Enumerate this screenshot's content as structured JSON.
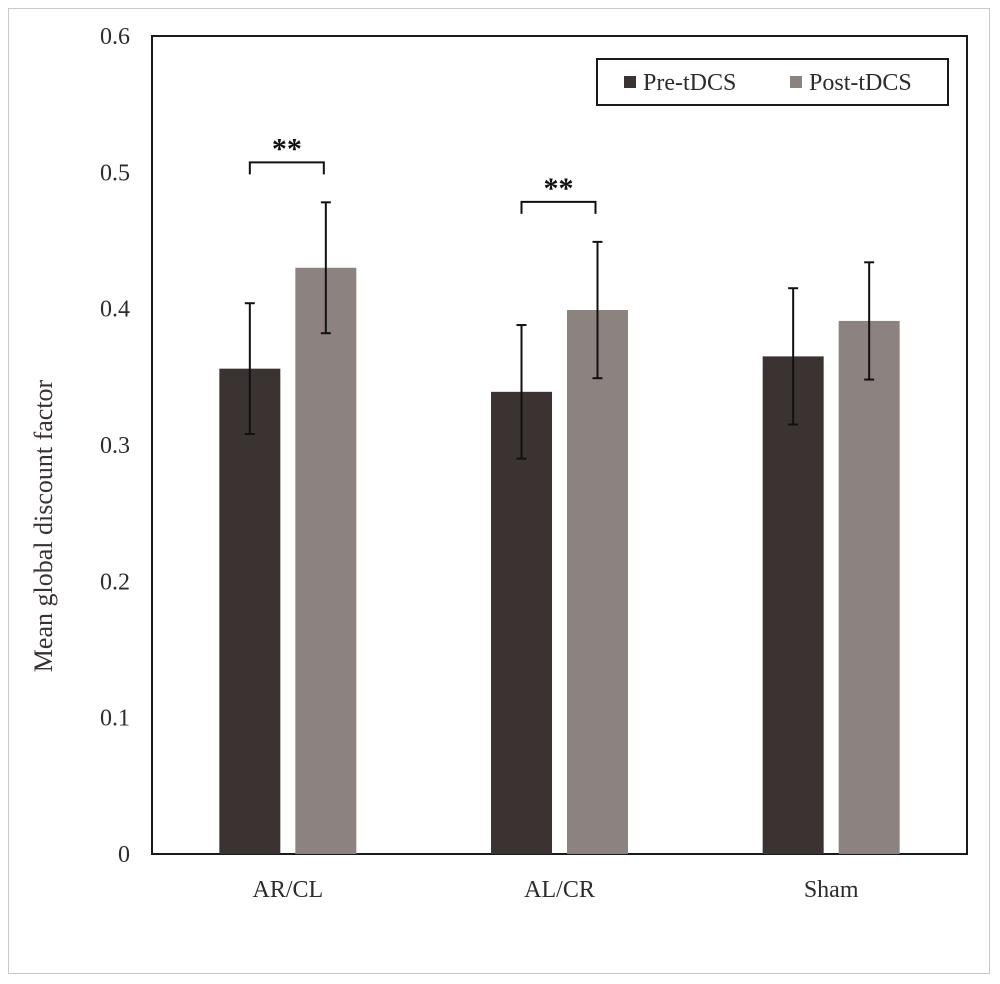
{
  "chart_data": {
    "type": "bar",
    "categories": [
      "AR/CL",
      "AL/CR",
      "Sham"
    ],
    "series": [
      {
        "name": "Pre-tDCS",
        "color": "#3a3331",
        "values": [
          0.356,
          0.339,
          0.365
        ],
        "errors": [
          0.048,
          0.049,
          0.05
        ]
      },
      {
        "name": "Post-tDCS",
        "color": "#8c827f",
        "values": [
          0.43,
          0.399,
          0.391
        ],
        "errors": [
          0.048,
          0.05,
          0.043
        ]
      }
    ],
    "ylabel": "Mean global discount factor",
    "xlabel": "",
    "ylim": [
      0,
      0.6
    ],
    "yticks": [
      "0",
      "0.1",
      "0.2",
      "0.3",
      "0.4",
      "0.5",
      "0.6"
    ],
    "grid": false,
    "legend_position": "top-right",
    "significance": [
      {
        "category_index": 0,
        "label": "**"
      },
      {
        "category_index": 1,
        "label": "**"
      }
    ]
  }
}
